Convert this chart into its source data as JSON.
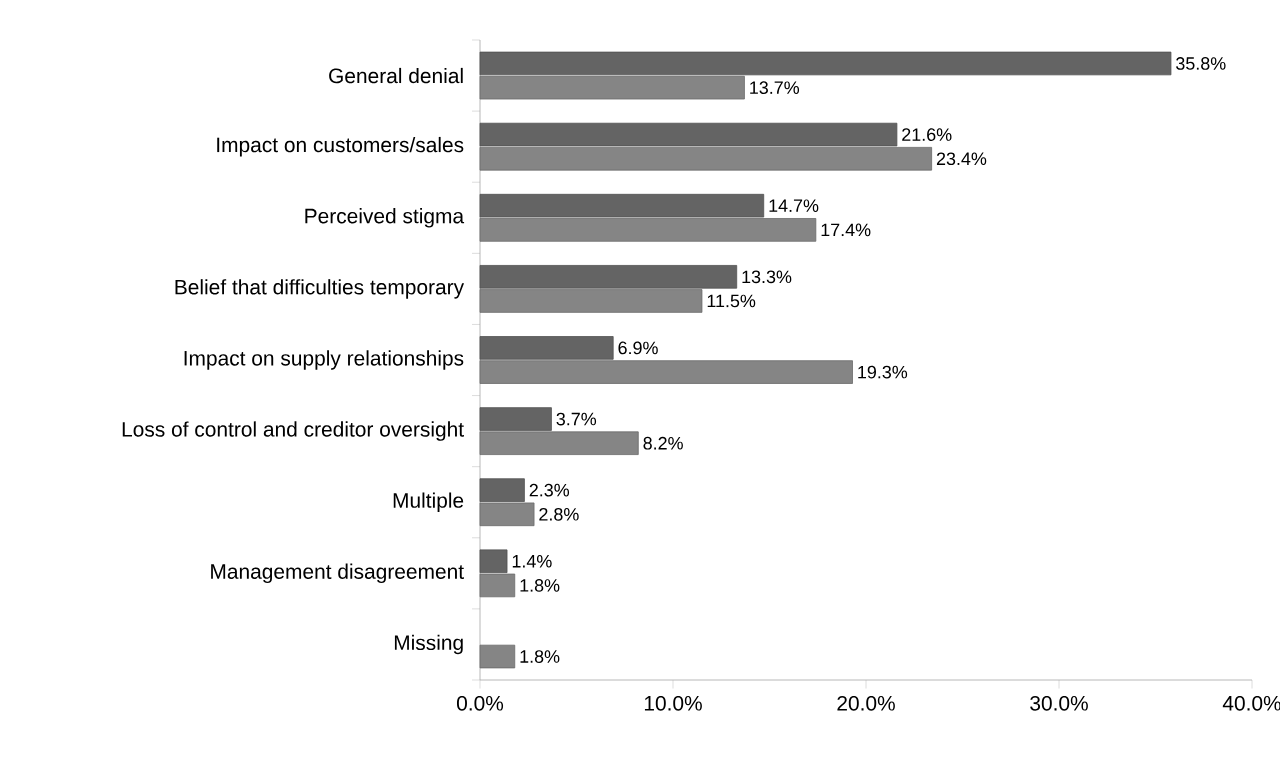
{
  "chart_data": {
    "type": "bar",
    "orientation": "horizontal",
    "categories": [
      "General denial",
      "Impact on customers/sales",
      "Perceived stigma",
      "Belief that difficulties temporary",
      "Impact on supply relationships",
      "Loss of control and creditor oversight",
      "Multiple",
      "Management disagreement",
      "Missing"
    ],
    "series": [
      {
        "color": "#646464",
        "values": [
          35.8,
          21.6,
          14.7,
          13.3,
          6.9,
          3.7,
          2.3,
          1.4,
          null
        ],
        "value_labels": [
          "35.8%",
          "21.6%",
          "14.7%",
          "13.3%",
          "6.9%",
          "3.7%",
          "2.3%",
          "1.4%",
          null
        ]
      },
      {
        "color": "#858585",
        "values": [
          13.7,
          23.4,
          17.4,
          11.5,
          19.3,
          8.2,
          2.8,
          1.8,
          1.8
        ],
        "value_labels": [
          "13.7%",
          "23.4%",
          "17.4%",
          "11.5%",
          "19.3%",
          "8.2%",
          "2.8%",
          "1.8%",
          "1.8%"
        ]
      }
    ],
    "xlim": [
      0,
      40
    ],
    "xticks": [
      {
        "value": 0,
        "label": "0.0%"
      },
      {
        "value": 10,
        "label": "10.0%"
      },
      {
        "value": 20,
        "label": "20.0%"
      },
      {
        "value": 30,
        "label": "30.0%"
      },
      {
        "value": 40,
        "label": "40.0%"
      }
    ]
  }
}
